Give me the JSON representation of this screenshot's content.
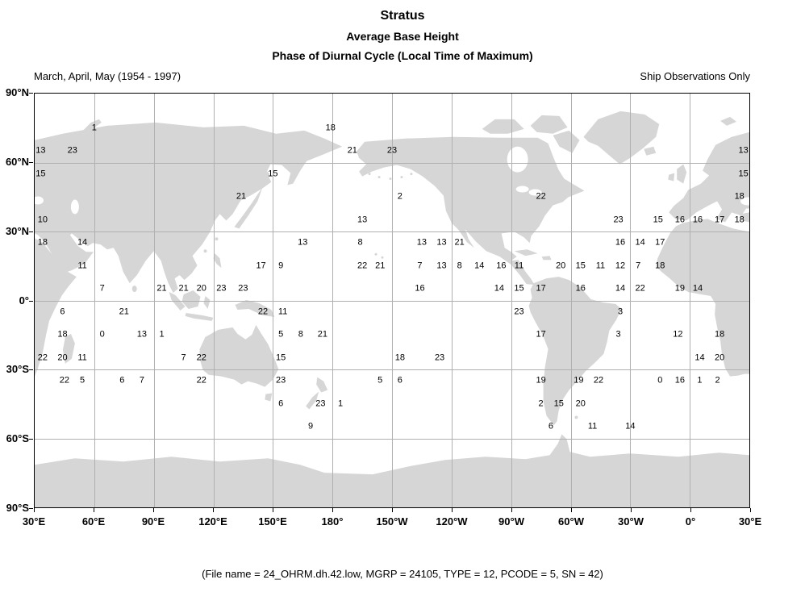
{
  "header": {
    "title": "Stratus",
    "subtitle1": "Average Base Height",
    "subtitle2": "Phase of Diurnal Cycle (Local Time of Maximum)",
    "season_label": "March, April, May (1954 - 1997)",
    "source_label": "Ship Observations Only"
  },
  "footer": {
    "file_info": "(File name = 24_OHRM.dh.42.low, MGRP = 24105, TYPE = 12, PCODE = 5, SN = 42)"
  },
  "map_colors": {
    "land": "#d6d6d6",
    "grid_line": "#b0b0b0",
    "frame": "#000000"
  },
  "chart_data": {
    "type": "scatter",
    "title": "Stratus",
    "subtitle": "Average Base Height",
    "variable": "Phase of Diurnal Cycle (Local Time of Maximum)",
    "grid": true,
    "x_ticks": [
      "30°E",
      "60°E",
      "90°E",
      "120°E",
      "150°E",
      "180°",
      "150°W",
      "120°W",
      "90°W",
      "60°W",
      "30°W",
      "0°",
      "30°E"
    ],
    "y_ticks": [
      "90°N",
      "60°N",
      "30°N",
      "0°",
      "30°S",
      "60°S",
      "90°S"
    ],
    "lon_range_deg_east": [
      30,
      390
    ],
    "lat_range_deg": [
      -90,
      90
    ],
    "points": [
      {
        "lon": 60,
        "lat": 75,
        "v": "1"
      },
      {
        "lon": 179,
        "lat": 75,
        "v": "18"
      },
      {
        "lon": 33,
        "lat": 65,
        "v": "13"
      },
      {
        "lon": 49,
        "lat": 65,
        "v": "23"
      },
      {
        "lon": 190,
        "lat": 65,
        "v": "21"
      },
      {
        "lon": 210,
        "lat": 65,
        "v": "23"
      },
      {
        "lon": 387,
        "lat": 65,
        "v": "13"
      },
      {
        "lon": 33,
        "lat": 55,
        "v": "15"
      },
      {
        "lon": 150,
        "lat": 55,
        "v": "15"
      },
      {
        "lon": 387,
        "lat": 55,
        "v": "15"
      },
      {
        "lon": 134,
        "lat": 45,
        "v": "21"
      },
      {
        "lon": 214,
        "lat": 45,
        "v": "2"
      },
      {
        "lon": 285,
        "lat": 45,
        "v": "22"
      },
      {
        "lon": 385,
        "lat": 45,
        "v": "18"
      },
      {
        "lon": 34,
        "lat": 35,
        "v": "10"
      },
      {
        "lon": 195,
        "lat": 35,
        "v": "13"
      },
      {
        "lon": 324,
        "lat": 35,
        "v": "23"
      },
      {
        "lon": 344,
        "lat": 35,
        "v": "15"
      },
      {
        "lon": 355,
        "lat": 35,
        "v": "16"
      },
      {
        "lon": 364,
        "lat": 35,
        "v": "16"
      },
      {
        "lon": 375,
        "lat": 35,
        "v": "17"
      },
      {
        "lon": 385,
        "lat": 35,
        "v": "18"
      },
      {
        "lon": 34,
        "lat": 25,
        "v": "18"
      },
      {
        "lon": 54,
        "lat": 25,
        "v": "14"
      },
      {
        "lon": 165,
        "lat": 25,
        "v": "13"
      },
      {
        "lon": 194,
        "lat": 25,
        "v": "8"
      },
      {
        "lon": 225,
        "lat": 25,
        "v": "13"
      },
      {
        "lon": 235,
        "lat": 25,
        "v": "13"
      },
      {
        "lon": 244,
        "lat": 25,
        "v": "21"
      },
      {
        "lon": 325,
        "lat": 25,
        "v": "16"
      },
      {
        "lon": 335,
        "lat": 25,
        "v": "14"
      },
      {
        "lon": 345,
        "lat": 25,
        "v": "17"
      },
      {
        "lon": 54,
        "lat": 15,
        "v": "11"
      },
      {
        "lon": 144,
        "lat": 15,
        "v": "17"
      },
      {
        "lon": 154,
        "lat": 15,
        "v": "9"
      },
      {
        "lon": 195,
        "lat": 15,
        "v": "22"
      },
      {
        "lon": 204,
        "lat": 15,
        "v": "21"
      },
      {
        "lon": 224,
        "lat": 15,
        "v": "7"
      },
      {
        "lon": 235,
        "lat": 15,
        "v": "13"
      },
      {
        "lon": 244,
        "lat": 15,
        "v": "8"
      },
      {
        "lon": 254,
        "lat": 15,
        "v": "14"
      },
      {
        "lon": 265,
        "lat": 15,
        "v": "16"
      },
      {
        "lon": 274,
        "lat": 15,
        "v": "11"
      },
      {
        "lon": 295,
        "lat": 15,
        "v": "20"
      },
      {
        "lon": 305,
        "lat": 15,
        "v": "15"
      },
      {
        "lon": 315,
        "lat": 15,
        "v": "11"
      },
      {
        "lon": 325,
        "lat": 15,
        "v": "12"
      },
      {
        "lon": 334,
        "lat": 15,
        "v": "7"
      },
      {
        "lon": 345,
        "lat": 15,
        "v": "18"
      },
      {
        "lon": 64,
        "lat": 5,
        "v": "7"
      },
      {
        "lon": 94,
        "lat": 5,
        "v": "21"
      },
      {
        "lon": 105,
        "lat": 5,
        "v": "21"
      },
      {
        "lon": 114,
        "lat": 5,
        "v": "20"
      },
      {
        "lon": 124,
        "lat": 5,
        "v": "23"
      },
      {
        "lon": 135,
        "lat": 5,
        "v": "23"
      },
      {
        "lon": 224,
        "lat": 5,
        "v": "16"
      },
      {
        "lon": 264,
        "lat": 5,
        "v": "14"
      },
      {
        "lon": 274,
        "lat": 5,
        "v": "15"
      },
      {
        "lon": 285,
        "lat": 5,
        "v": "17"
      },
      {
        "lon": 305,
        "lat": 5,
        "v": "16"
      },
      {
        "lon": 325,
        "lat": 5,
        "v": "14"
      },
      {
        "lon": 335,
        "lat": 5,
        "v": "22"
      },
      {
        "lon": 355,
        "lat": 5,
        "v": "19"
      },
      {
        "lon": 364,
        "lat": 5,
        "v": "14"
      },
      {
        "lon": 44,
        "lat": -5,
        "v": "6"
      },
      {
        "lon": 75,
        "lat": -5,
        "v": "21"
      },
      {
        "lon": 145,
        "lat": -5,
        "v": "22"
      },
      {
        "lon": 155,
        "lat": -5,
        "v": "11"
      },
      {
        "lon": 274,
        "lat": -5,
        "v": "23"
      },
      {
        "lon": 325,
        "lat": -5,
        "v": "3"
      },
      {
        "lon": 44,
        "lat": -15,
        "v": "18"
      },
      {
        "lon": 64,
        "lat": -15,
        "v": "0"
      },
      {
        "lon": 84,
        "lat": -15,
        "v": "13"
      },
      {
        "lon": 94,
        "lat": -15,
        "v": "1"
      },
      {
        "lon": 154,
        "lat": -15,
        "v": "5"
      },
      {
        "lon": 164,
        "lat": -15,
        "v": "8"
      },
      {
        "lon": 175,
        "lat": -15,
        "v": "21"
      },
      {
        "lon": 285,
        "lat": -15,
        "v": "17"
      },
      {
        "lon": 324,
        "lat": -15,
        "v": "3"
      },
      {
        "lon": 354,
        "lat": -15,
        "v": "12"
      },
      {
        "lon": 375,
        "lat": -15,
        "v": "18"
      },
      {
        "lon": 34,
        "lat": -25,
        "v": "22"
      },
      {
        "lon": 44,
        "lat": -25,
        "v": "20"
      },
      {
        "lon": 54,
        "lat": -25,
        "v": "11"
      },
      {
        "lon": 105,
        "lat": -25,
        "v": "7"
      },
      {
        "lon": 114,
        "lat": -25,
        "v": "22"
      },
      {
        "lon": 154,
        "lat": -25,
        "v": "15"
      },
      {
        "lon": 214,
        "lat": -25,
        "v": "18"
      },
      {
        "lon": 234,
        "lat": -25,
        "v": "23"
      },
      {
        "lon": 365,
        "lat": -25,
        "v": "14"
      },
      {
        "lon": 375,
        "lat": -25,
        "v": "20"
      },
      {
        "lon": 45,
        "lat": -35,
        "v": "22"
      },
      {
        "lon": 54,
        "lat": -35,
        "v": "5"
      },
      {
        "lon": 74,
        "lat": -35,
        "v": "6"
      },
      {
        "lon": 84,
        "lat": -35,
        "v": "7"
      },
      {
        "lon": 114,
        "lat": -35,
        "v": "22"
      },
      {
        "lon": 154,
        "lat": -35,
        "v": "23"
      },
      {
        "lon": 204,
        "lat": -35,
        "v": "5"
      },
      {
        "lon": 214,
        "lat": -35,
        "v": "6"
      },
      {
        "lon": 285,
        "lat": -35,
        "v": "19"
      },
      {
        "lon": 304,
        "lat": -35,
        "v": "19"
      },
      {
        "lon": 314,
        "lat": -35,
        "v": "22"
      },
      {
        "lon": 345,
        "lat": -35,
        "v": "0"
      },
      {
        "lon": 355,
        "lat": -35,
        "v": "16"
      },
      {
        "lon": 365,
        "lat": -35,
        "v": "1"
      },
      {
        "lon": 374,
        "lat": -35,
        "v": "2"
      },
      {
        "lon": 154,
        "lat": -45,
        "v": "6"
      },
      {
        "lon": 174,
        "lat": -45,
        "v": "23"
      },
      {
        "lon": 184,
        "lat": -45,
        "v": "1"
      },
      {
        "lon": 285,
        "lat": -45,
        "v": "2"
      },
      {
        "lon": 294,
        "lat": -45,
        "v": "15"
      },
      {
        "lon": 305,
        "lat": -45,
        "v": "20"
      },
      {
        "lon": 169,
        "lat": -55,
        "v": "9"
      },
      {
        "lon": 290,
        "lat": -55,
        "v": "6"
      },
      {
        "lon": 311,
        "lat": -55,
        "v": "11"
      },
      {
        "lon": 330,
        "lat": -55,
        "v": "14"
      }
    ]
  }
}
